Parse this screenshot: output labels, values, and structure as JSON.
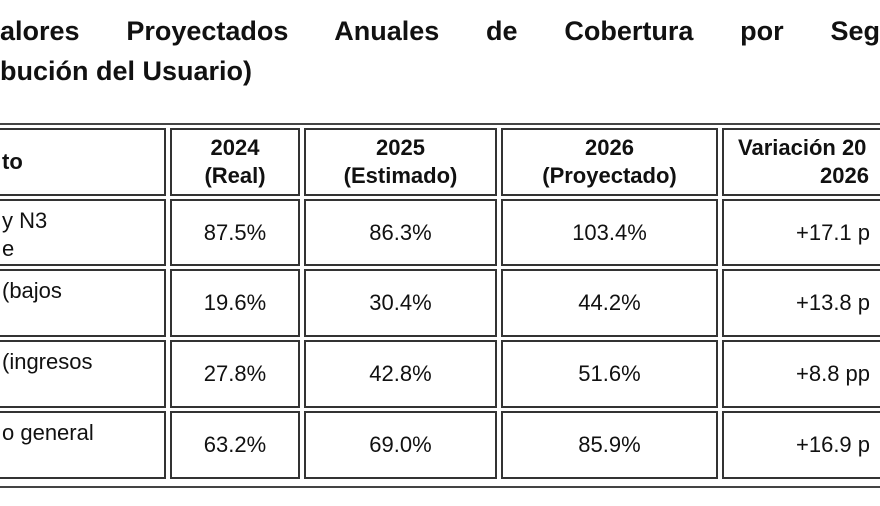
{
  "title": [
    "alores Proyectados Anuales de Cobertura por Seg",
    "bución del Usuario)"
  ],
  "table": {
    "header": [
      "to",
      "2024\n(Real)",
      "2025\n(Estimado)",
      "2026\n(Proyectado)",
      [
        "Variación 20",
        "2026"
      ]
    ],
    "rows": [
      [
        "y N3\ne",
        "87.5%",
        "86.3%",
        "103.4%",
        "+17.1 p"
      ],
      [
        "(bajos",
        "19.6%",
        "30.4%",
        "44.2%",
        "+13.8 p"
      ],
      [
        "(ingresos",
        "27.8%",
        "42.8%",
        "51.6%",
        "+8.8 pp"
      ],
      [
        "o general",
        "63.2%",
        "69.0%",
        "85.9%",
        "+16.9 p"
      ]
    ]
  }
}
